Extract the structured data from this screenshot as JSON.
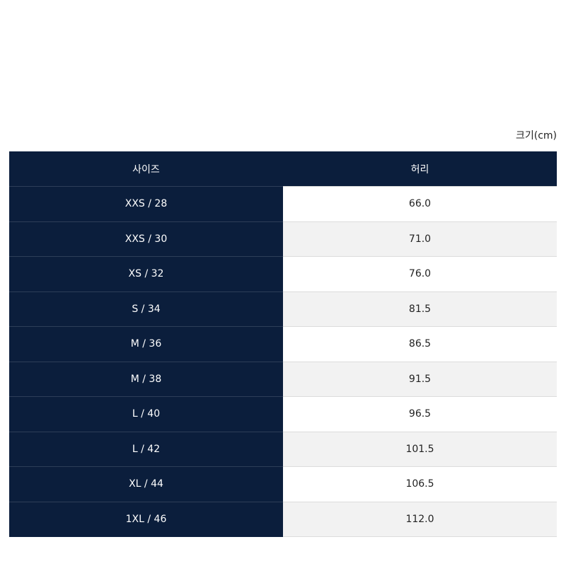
{
  "unit_label": "크기(cm)",
  "table": {
    "header": [
      "사이즈",
      "허리"
    ],
    "rows": [
      [
        "XXS / 28",
        "66.0"
      ],
      [
        "XXS / 30",
        "71.0"
      ],
      [
        "XS / 32",
        "76.0"
      ],
      [
        "S / 34",
        "81.5"
      ],
      [
        "M / 36",
        "86.5"
      ],
      [
        "M / 38",
        "91.5"
      ],
      [
        "L / 40",
        "96.5"
      ],
      [
        "L / 42",
        "101.5"
      ],
      [
        "XL / 44",
        "106.5"
      ],
      [
        "1XL / 46",
        "112.0"
      ]
    ]
  }
}
